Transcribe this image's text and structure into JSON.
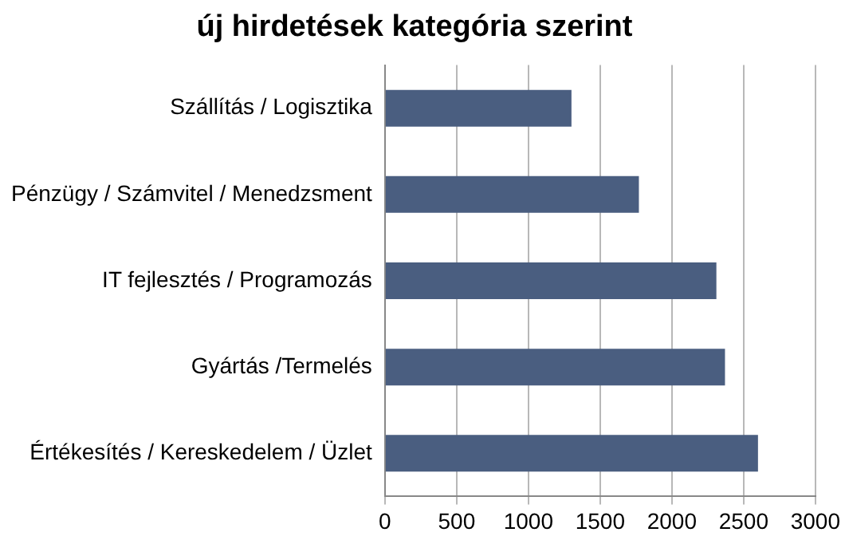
{
  "chart_data": {
    "type": "bar",
    "orientation": "horizontal",
    "title": "új hirdetések kategória szerint",
    "categories": [
      "Szállítás / Logisztika",
      "Pénzügy / Számvitel / Menedzsment",
      "IT fejlesztés / Programozás",
      "Gyártás /Termelés",
      "Értékesítés / Kereskedelem / Üzlet"
    ],
    "values": [
      1300,
      1770,
      2310,
      2370,
      2600
    ],
    "color": "#4a5e80",
    "xlim": [
      0,
      3000
    ],
    "xticks": [
      0,
      500,
      1000,
      1500,
      2000,
      2500,
      3000
    ],
    "grid": "x",
    "legend": false
  }
}
